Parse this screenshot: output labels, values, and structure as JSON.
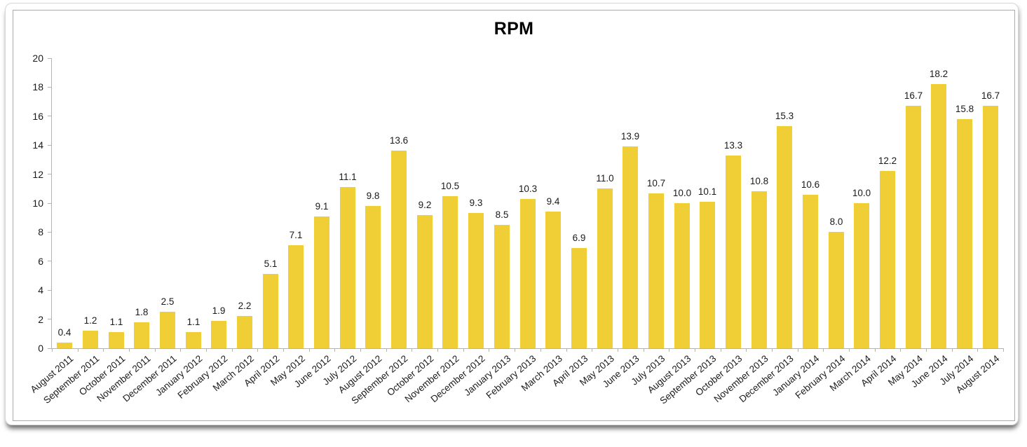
{
  "chart_data": {
    "type": "bar",
    "title": "RPM",
    "categories": [
      "August 2011",
      "September 2011",
      "October 2011",
      "November 2011",
      "December 2011",
      "January 2012",
      "February 2012",
      "March 2012",
      "April 2012",
      "May 2012",
      "June 2012",
      "July 2012",
      "August 2012",
      "September 2012",
      "October 2012",
      "November 2012",
      "December 2012",
      "January 2013",
      "February 2013",
      "March 2013",
      "April 2013",
      "May 2013",
      "June 2013",
      "July 2013",
      "August 2013",
      "September 2013",
      "October 2013",
      "November 2013",
      "December 2013",
      "January 2014",
      "February 2014",
      "March 2014",
      "April 2014",
      "May 2014",
      "June 2014",
      "July 2014",
      "August 2014"
    ],
    "values": [
      0.4,
      1.2,
      1.1,
      1.8,
      2.5,
      1.1,
      1.9,
      2.2,
      5.1,
      7.1,
      9.1,
      11.1,
      9.8,
      13.6,
      9.2,
      10.5,
      9.3,
      8.5,
      10.3,
      9.4,
      6.9,
      11.0,
      13.9,
      10.7,
      10.0,
      10.1,
      13.3,
      10.8,
      15.3,
      10.6,
      8.0,
      10.0,
      12.2,
      16.7,
      18.2,
      15.8,
      16.7
    ],
    "xlabel": "",
    "ylabel": "",
    "ylim": [
      0,
      20
    ],
    "y_ticks": [
      0,
      2,
      4,
      6,
      8,
      10,
      12,
      14,
      16,
      18,
      20
    ],
    "grid": false,
    "legend_position": "none",
    "value_labels_shown": true,
    "value_label_decimals": 1,
    "bar_color": "#F0CE35",
    "axis_color": "#B3B3B3",
    "text_color": "#1A1A1A",
    "title_color": "#000000"
  }
}
